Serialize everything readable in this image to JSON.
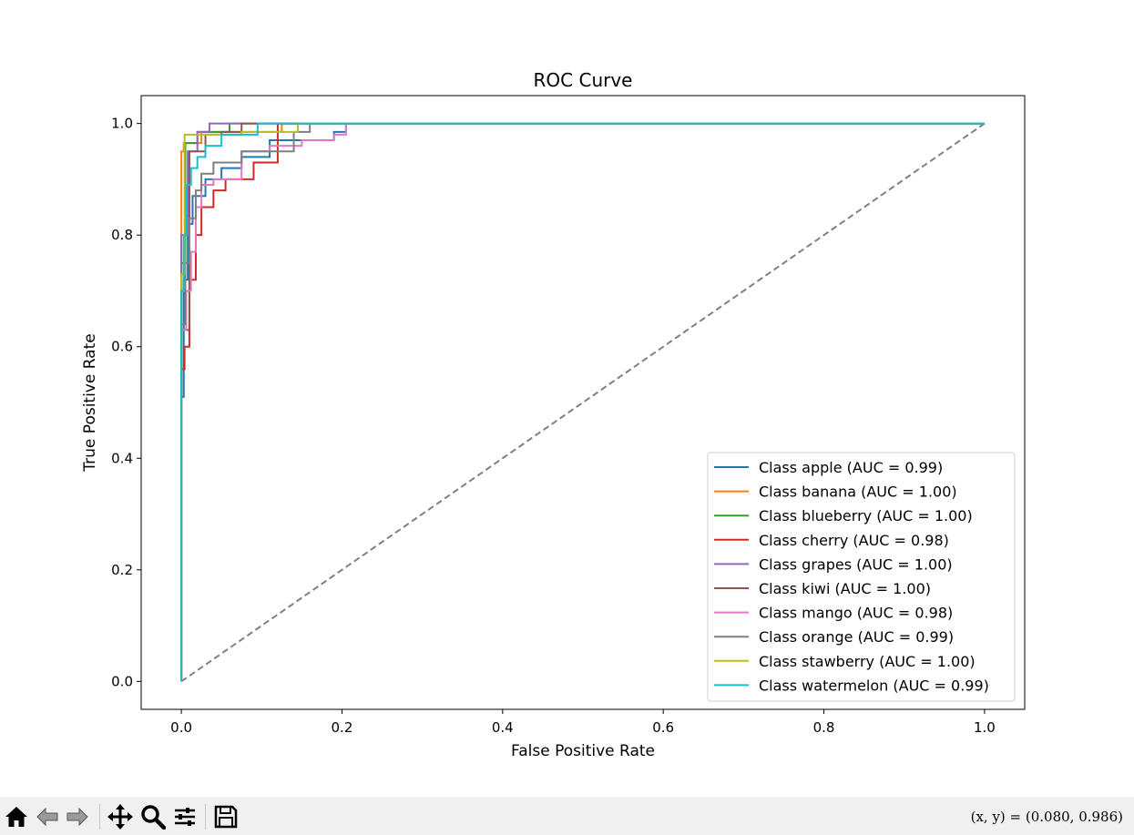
{
  "chart_data": {
    "type": "line",
    "title": "ROC Curve",
    "xlabel": "False Positive Rate",
    "ylabel": "True Positive Rate",
    "xlim": [
      -0.05,
      1.05
    ],
    "ylim": [
      -0.05,
      1.05
    ],
    "xticks": [
      0.0,
      0.2,
      0.4,
      0.6,
      0.8,
      1.0
    ],
    "yticks": [
      0.0,
      0.2,
      0.4,
      0.6,
      0.8,
      1.0
    ],
    "xtick_labels": [
      "0.0",
      "0.2",
      "0.4",
      "0.6",
      "0.8",
      "1.0"
    ],
    "ytick_labels": [
      "0.0",
      "0.2",
      "0.4",
      "0.6",
      "0.8",
      "1.0"
    ],
    "grid": false,
    "legend_position": "lower-right",
    "diagonal": {
      "x": [
        0,
        1
      ],
      "y": [
        0,
        1
      ],
      "color": "#808080",
      "style": "dashed"
    },
    "series": [
      {
        "name": "Class apple (AUC = 0.99)",
        "color": "#1f77b4",
        "x": [
          0,
          0,
          0.003,
          0.003,
          0.008,
          0.008,
          0.014,
          0.014,
          0.03,
          0.03,
          0.05,
          0.05,
          0.075,
          0.075,
          0.11,
          0.11,
          0.19,
          0.19,
          0.205,
          0.205,
          1
        ],
        "y": [
          0,
          0.51,
          0.51,
          0.72,
          0.72,
          0.82,
          0.82,
          0.87,
          0.87,
          0.9,
          0.9,
          0.92,
          0.92,
          0.94,
          0.94,
          0.97,
          0.97,
          0.985,
          0.985,
          1,
          1
        ]
      },
      {
        "name": "Class banana (AUC = 1.00)",
        "color": "#ff7f0e",
        "x": [
          0,
          0,
          0.003,
          0.003,
          0.025,
          0.025,
          0.125,
          0.125,
          1
        ],
        "y": [
          0,
          0.95,
          0.95,
          0.965,
          0.965,
          0.985,
          0.985,
          1,
          1
        ]
      },
      {
        "name": "Class blueberry (AUC = 1.00)",
        "color": "#2ca02c",
        "x": [
          0,
          0,
          0.005,
          0.005,
          0.02,
          0.02,
          0.06,
          0.06,
          1
        ],
        "y": [
          0,
          0.75,
          0.75,
          0.965,
          0.965,
          0.985,
          0.985,
          1,
          1
        ]
      },
      {
        "name": "Class cherry (AUC = 0.98)",
        "color": "#d62728",
        "x": [
          0,
          0,
          0.004,
          0.004,
          0.01,
          0.01,
          0.018,
          0.018,
          0.025,
          0.025,
          0.04,
          0.04,
          0.055,
          0.055,
          0.09,
          0.09,
          0.12,
          0.12,
          1
        ],
        "y": [
          0,
          0.56,
          0.56,
          0.6,
          0.6,
          0.72,
          0.72,
          0.8,
          0.8,
          0.85,
          0.85,
          0.88,
          0.88,
          0.9,
          0.9,
          0.93,
          0.93,
          1,
          1
        ]
      },
      {
        "name": "Class grapes (AUC = 1.00)",
        "color": "#9467bd",
        "x": [
          0,
          0,
          0.008,
          0.008,
          0.02,
          0.02,
          0.035,
          0.035,
          1
        ],
        "y": [
          0,
          0.8,
          0.8,
          0.95,
          0.95,
          0.985,
          0.985,
          1,
          1
        ]
      },
      {
        "name": "Class kiwi (AUC = 1.00)",
        "color": "#8c564b",
        "x": [
          0,
          0,
          0.01,
          0.01,
          0.03,
          0.03,
          0.05,
          0.05,
          0.075,
          0.075,
          1
        ],
        "y": [
          0,
          0.63,
          0.63,
          0.95,
          0.95,
          0.98,
          0.98,
          0.985,
          0.985,
          1,
          1
        ]
      },
      {
        "name": "Class mango (AUC = 0.98)",
        "color": "#e377c2",
        "x": [
          0,
          0,
          0.006,
          0.006,
          0.012,
          0.012,
          0.018,
          0.018,
          0.025,
          0.025,
          0.04,
          0.04,
          0.075,
          0.075,
          0.11,
          0.11,
          0.15,
          0.15,
          0.19,
          0.19,
          0.205,
          0.205,
          1
        ],
        "y": [
          0,
          0.63,
          0.63,
          0.7,
          0.7,
          0.77,
          0.77,
          0.85,
          0.85,
          0.89,
          0.89,
          0.9,
          0.9,
          0.95,
          0.95,
          0.96,
          0.96,
          0.97,
          0.97,
          0.98,
          0.98,
          1,
          1
        ]
      },
      {
        "name": "Class orange (AUC = 0.99)",
        "color": "#7f7f7f",
        "x": [
          0,
          0,
          0.005,
          0.005,
          0.01,
          0.01,
          0.018,
          0.018,
          0.025,
          0.025,
          0.04,
          0.04,
          0.075,
          0.075,
          0.14,
          0.14,
          0.16,
          0.16,
          1
        ],
        "y": [
          0,
          0.64,
          0.64,
          0.75,
          0.75,
          0.83,
          0.83,
          0.88,
          0.88,
          0.91,
          0.91,
          0.93,
          0.93,
          0.95,
          0.95,
          0.985,
          0.985,
          1,
          1
        ]
      },
      {
        "name": "Class stawberry (AUC = 1.00)",
        "color": "#bcbd22",
        "x": [
          0,
          0,
          0.004,
          0.004,
          0.075,
          0.075,
          0.145,
          0.145,
          1
        ],
        "y": [
          0,
          0.73,
          0.73,
          0.98,
          0.98,
          0.985,
          0.985,
          1,
          1
        ]
      },
      {
        "name": "Class watermelon (AUC = 0.99)",
        "color": "#17becf",
        "x": [
          0,
          0,
          0.003,
          0.003,
          0.006,
          0.006,
          0.012,
          0.012,
          0.02,
          0.02,
          0.03,
          0.03,
          0.05,
          0.05,
          0.095,
          0.095,
          1
        ],
        "y": [
          0,
          0.7,
          0.7,
          0.8,
          0.8,
          0.89,
          0.89,
          0.92,
          0.92,
          0.94,
          0.94,
          0.96,
          0.96,
          0.98,
          0.98,
          1,
          1
        ]
      }
    ]
  },
  "toolbar": {
    "coords": "(x, y) = (0.080, 0.986)",
    "icons": [
      "home-icon",
      "back-arrow-icon",
      "forward-arrow-icon",
      "pan-icon",
      "zoom-icon",
      "subplots-icon",
      "save-icon"
    ]
  }
}
